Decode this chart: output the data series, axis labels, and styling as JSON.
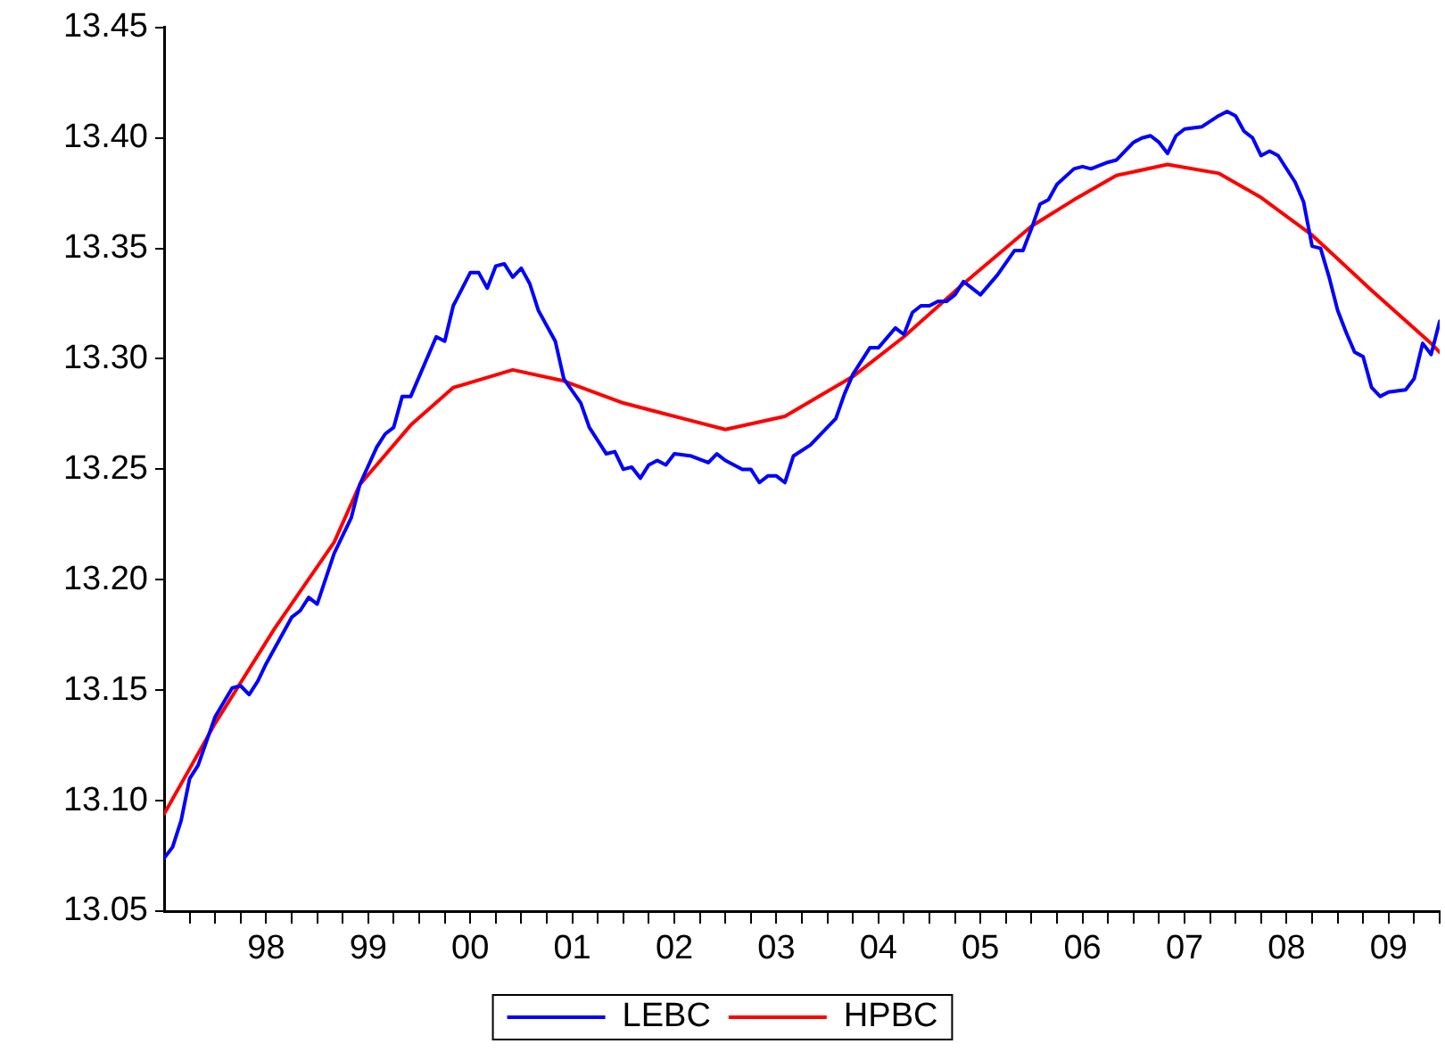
{
  "chart_data": {
    "type": "line",
    "legend": "bottom",
    "marker": "none",
    "line_style": "solid",
    "grid": false,
    "xlim": [
      "1997-07",
      "2010-01"
    ],
    "xticks": [
      {
        "value": "1997-10",
        "label": null
      },
      {
        "value": "1998-01",
        "label": null
      },
      {
        "value": "1998-04",
        "label": null
      },
      {
        "value": "1998-07",
        "label": "98"
      },
      {
        "value": "1998-10",
        "label": null
      },
      {
        "value": "1999-01",
        "label": null
      },
      {
        "value": "1999-04",
        "label": null
      },
      {
        "value": "1999-07",
        "label": "99"
      },
      {
        "value": "1999-10",
        "label": null
      },
      {
        "value": "2000-01",
        "label": null
      },
      {
        "value": "2000-04",
        "label": null
      },
      {
        "value": "2000-07",
        "label": "00"
      },
      {
        "value": "2000-10",
        "label": null
      },
      {
        "value": "2001-01",
        "label": null
      },
      {
        "value": "2001-04",
        "label": null
      },
      {
        "value": "2001-07",
        "label": "01"
      },
      {
        "value": "2001-10",
        "label": null
      },
      {
        "value": "2002-01",
        "label": null
      },
      {
        "value": "2002-04",
        "label": null
      },
      {
        "value": "2002-07",
        "label": "02"
      },
      {
        "value": "2002-10",
        "label": null
      },
      {
        "value": "2003-01",
        "label": null
      },
      {
        "value": "2003-04",
        "label": null
      },
      {
        "value": "2003-07",
        "label": "03"
      },
      {
        "value": "2003-10",
        "label": null
      },
      {
        "value": "2004-01",
        "label": null
      },
      {
        "value": "2004-04",
        "label": null
      },
      {
        "value": "2004-07",
        "label": "04"
      },
      {
        "value": "2004-10",
        "label": null
      },
      {
        "value": "2005-01",
        "label": null
      },
      {
        "value": "2005-04",
        "label": null
      },
      {
        "value": "2005-07",
        "label": "05"
      },
      {
        "value": "2005-10",
        "label": null
      },
      {
        "value": "2006-01",
        "label": null
      },
      {
        "value": "2006-04",
        "label": null
      },
      {
        "value": "2006-07",
        "label": "06"
      },
      {
        "value": "2006-10",
        "label": null
      },
      {
        "value": "2007-01",
        "label": null
      },
      {
        "value": "2007-04",
        "label": null
      },
      {
        "value": "2007-07",
        "label": "07"
      },
      {
        "value": "2007-10",
        "label": null
      },
      {
        "value": "2008-01",
        "label": null
      },
      {
        "value": "2008-04",
        "label": null
      },
      {
        "value": "2008-07",
        "label": "08"
      },
      {
        "value": "2008-10",
        "label": null
      },
      {
        "value": "2009-01",
        "label": null
      },
      {
        "value": "2009-04",
        "label": null
      },
      {
        "value": "2009-07",
        "label": "09"
      },
      {
        "value": "2009-10",
        "label": null
      },
      {
        "value": "2010-01",
        "label": null
      }
    ],
    "ylim": [
      13.05,
      13.45
    ],
    "yticks": [
      13.05,
      {
        "value": 13.1,
        "label": "13.10"
      },
      13.15,
      {
        "value": 13.2,
        "label": "13.20"
      },
      13.25,
      {
        "value": 13.3,
        "label": "13.30"
      },
      13.35,
      {
        "value": 13.4,
        "label": "13.40"
      },
      13.45
    ],
    "series": [
      {
        "name": "LEBC",
        "color": "#0000ff",
        "x": [
          "1997-07",
          "1997-08",
          "1997-09",
          "1997-10",
          "1997-11",
          "1998-01",
          "1998-03",
          "1998-04",
          "1998-05",
          "1998-06",
          "1998-07",
          "1998-10",
          "1998-11",
          "1998-12",
          "1999-01",
          "1999-03",
          "1999-05",
          "1999-06",
          "1999-08",
          "1999-09",
          "1999-10",
          "1999-11",
          "1999-12",
          "2000-03",
          "2000-04",
          "2000-05",
          "2000-07",
          "2000-08",
          "2000-09",
          "2000-10",
          "2000-11",
          "2000-12",
          "2001-01",
          "2001-02",
          "2001-03",
          "2001-05",
          "2001-06",
          "2001-08",
          "2001-09",
          "2001-11",
          "2001-12",
          "2002-01",
          "2002-02",
          "2002-03",
          "2002-04",
          "2002-05",
          "2002-06",
          "2002-07",
          "2002-09",
          "2002-11",
          "2002-12",
          "2003-01",
          "2003-03",
          "2003-04",
          "2003-05",
          "2003-06",
          "2003-07",
          "2003-08",
          "2003-09",
          "2003-11",
          "2004-02",
          "2004-03",
          "2004-04",
          "2004-06",
          "2004-07",
          "2004-09",
          "2004-10",
          "2004-11",
          "2004-12",
          "2005-01",
          "2005-02",
          "2005-03",
          "2005-04",
          "2005-05",
          "2005-07",
          "2005-09",
          "2005-11",
          "2005-12",
          "2006-01",
          "2006-02",
          "2006-03",
          "2006-04",
          "2006-06",
          "2006-07",
          "2006-08",
          "2006-10",
          "2006-11",
          "2007-01",
          "2007-02",
          "2007-03",
          "2007-04",
          "2007-05",
          "2007-06",
          "2007-07",
          "2007-09",
          "2007-11",
          "2007-12",
          "2008-01",
          "2008-02",
          "2008-03",
          "2008-04",
          "2008-05",
          "2008-06",
          "2008-08",
          "2008-09",
          "2008-10",
          "2008-11",
          "2008-12",
          "2009-01",
          "2009-02",
          "2009-03",
          "2009-04",
          "2009-05",
          "2009-06",
          "2009-07",
          "2009-09",
          "2009-10",
          "2009-11",
          "2009-12",
          "2010-01"
        ],
        "values": [
          13.074,
          13.079,
          13.091,
          13.11,
          13.116,
          13.138,
          13.151,
          13.152,
          13.148,
          13.154,
          13.162,
          13.183,
          13.186,
          13.192,
          13.189,
          13.212,
          13.228,
          13.243,
          13.26,
          13.266,
          13.269,
          13.283,
          13.283,
          13.31,
          13.308,
          13.324,
          13.339,
          13.339,
          13.332,
          13.342,
          13.343,
          13.337,
          13.341,
          13.334,
          13.322,
          13.308,
          13.291,
          13.28,
          13.269,
          13.257,
          13.258,
          13.25,
          13.251,
          13.246,
          13.252,
          13.254,
          13.252,
          13.257,
          13.256,
          13.253,
          13.257,
          13.254,
          13.25,
          13.25,
          13.244,
          13.247,
          13.247,
          13.244,
          13.256,
          13.261,
          13.273,
          13.284,
          13.293,
          13.305,
          13.305,
          13.314,
          13.311,
          13.321,
          13.324,
          13.324,
          13.326,
          13.326,
          13.329,
          13.335,
          13.329,
          13.338,
          13.349,
          13.349,
          13.359,
          13.37,
          13.372,
          13.379,
          13.386,
          13.387,
          13.386,
          13.389,
          13.39,
          13.398,
          13.4,
          13.401,
          13.398,
          13.393,
          13.401,
          13.404,
          13.405,
          13.41,
          13.412,
          13.41,
          13.403,
          13.4,
          13.392,
          13.394,
          13.392,
          13.38,
          13.371,
          13.351,
          13.35,
          13.337,
          13.322,
          13.312,
          13.303,
          13.301,
          13.287,
          13.283,
          13.285,
          13.286,
          13.291,
          13.307,
          13.302,
          13.317
        ]
      },
      {
        "name": "HPBC",
        "color": "#ff0000",
        "x": [
          "1997-07",
          "1998-01",
          "1998-08",
          "1999-03",
          "1999-06",
          "1999-12",
          "2000-05",
          "2000-12",
          "2001-06",
          "2002-01",
          "2002-06",
          "2003-01",
          "2003-08",
          "2004-04",
          "2004-10",
          "2005-05",
          "2006-01",
          "2006-06",
          "2006-11",
          "2007-05",
          "2007-11",
          "2008-04",
          "2008-10",
          "2009-05",
          "2009-12",
          "2010-01"
        ],
        "values": [
          13.094,
          13.135,
          13.178,
          13.217,
          13.243,
          13.27,
          13.287,
          13.295,
          13.29,
          13.28,
          13.275,
          13.268,
          13.274,
          13.292,
          13.31,
          13.334,
          13.36,
          13.372,
          13.383,
          13.388,
          13.384,
          13.373,
          13.356,
          13.331,
          13.307,
          13.303
        ]
      }
    ]
  }
}
